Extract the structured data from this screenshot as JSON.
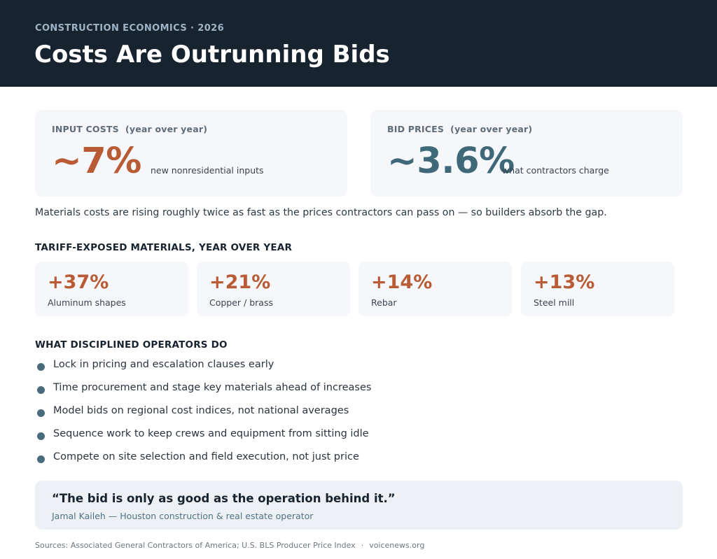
{
  "header": {
    "eyebrow": "CONSTRUCTION ECONOMICS · 2026",
    "title": "Costs Are Outrunning Bids"
  },
  "stats": {
    "input_costs": {
      "label": "INPUT COSTS",
      "sublabel": "(year over year)",
      "value": "~7%",
      "description": "new nonresidential inputs",
      "color": "#b95b35"
    },
    "bid_prices": {
      "label": "BID PRICES",
      "sublabel": "(year over year)",
      "value": "~3.6%",
      "description": "what contractors charge",
      "color": "#3f6879"
    }
  },
  "summary": "Materials costs are rising roughly twice as fast as the prices contractors can pass on — so builders absorb the gap.",
  "materials": {
    "heading": "TARIFF-EXPOSED MATERIALS, YEAR OVER YEAR",
    "items": [
      {
        "value": "+37%",
        "name": "Aluminum shapes"
      },
      {
        "value": "+21%",
        "name": "Copper / brass"
      },
      {
        "value": "+14%",
        "name": "Rebar"
      },
      {
        "value": "+13%",
        "name": "Steel mill"
      }
    ]
  },
  "operators": {
    "heading": "WHAT DISCIPLINED OPERATORS DO",
    "items": [
      "Lock in pricing and escalation clauses early",
      "Time procurement and stage key materials ahead of increases",
      "Model bids on regional cost indices, not national averages",
      "Sequence work to keep crews and equipment from sitting idle",
      "Compete on site selection and field execution, not just price"
    ]
  },
  "quote": {
    "text": "“The bid is only as good as the operation behind it.”",
    "attribution": "Jamal Kaileh — Houston construction & real estate operator"
  },
  "footer": {
    "sources": "Sources: Associated General Contractors of America; U.S. BLS Producer Price Index",
    "separator": "·",
    "site": "voicenews.org"
  },
  "colors": {
    "accent_orange": "#b95b35",
    "accent_teal": "#3f6879",
    "header_bg": "#17232f"
  }
}
